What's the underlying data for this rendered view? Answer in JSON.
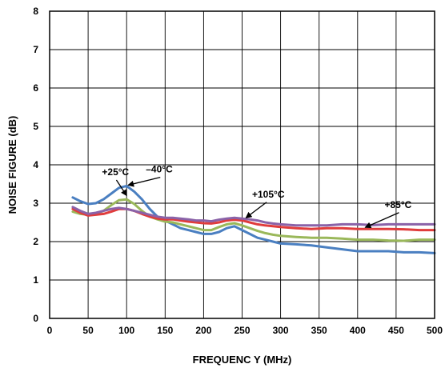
{
  "chart_data": {
    "type": "line",
    "title": "",
    "xlabel": "FREQUENC Y (MHz)",
    "ylabel": "NOISE FIGURE (dB)",
    "xlim": [
      0,
      500
    ],
    "ylim": [
      0,
      8
    ],
    "xticks": [
      0,
      50,
      100,
      150,
      200,
      250,
      300,
      350,
      400,
      450,
      500
    ],
    "yticks": [
      0,
      1,
      2,
      3,
      4,
      5,
      6,
      7,
      8
    ],
    "grid": true,
    "legend": "none",
    "series": [
      {
        "name": "",
        "color": "#4a7fc1",
        "x": [
          30,
          40,
          50,
          60,
          70,
          80,
          90,
          100,
          110,
          120,
          130,
          140,
          150,
          160,
          170,
          180,
          190,
          200,
          210,
          220,
          230,
          240,
          250,
          260,
          270,
          280,
          290,
          300,
          320,
          340,
          360,
          380,
          400,
          420,
          440,
          460,
          480,
          500
        ],
        "y": [
          3.15,
          3.05,
          2.98,
          3.0,
          3.1,
          3.25,
          3.4,
          3.45,
          3.3,
          3.1,
          2.85,
          2.65,
          2.55,
          2.45,
          2.35,
          2.3,
          2.25,
          2.2,
          2.2,
          2.25,
          2.35,
          2.4,
          2.3,
          2.2,
          2.1,
          2.05,
          2.0,
          1.95,
          1.93,
          1.9,
          1.85,
          1.8,
          1.75,
          1.75,
          1.75,
          1.72,
          1.72,
          1.7
        ]
      },
      {
        "name": "",
        "color": "#9ab85a",
        "x": [
          30,
          40,
          50,
          60,
          70,
          80,
          90,
          100,
          110,
          120,
          130,
          140,
          150,
          160,
          170,
          180,
          190,
          200,
          210,
          220,
          230,
          240,
          250,
          260,
          270,
          280,
          290,
          300,
          320,
          340,
          360,
          380,
          400,
          420,
          440,
          460,
          480,
          500
        ],
        "y": [
          2.78,
          2.72,
          2.7,
          2.72,
          2.8,
          2.95,
          3.08,
          3.1,
          2.98,
          2.8,
          2.65,
          2.58,
          2.52,
          2.5,
          2.45,
          2.4,
          2.35,
          2.3,
          2.3,
          2.38,
          2.45,
          2.48,
          2.42,
          2.35,
          2.28,
          2.22,
          2.18,
          2.15,
          2.12,
          2.1,
          2.1,
          2.08,
          2.05,
          2.05,
          2.03,
          2.02,
          2.05,
          2.05
        ]
      },
      {
        "name": "",
        "color": "#e03c3c",
        "x": [
          30,
          40,
          50,
          60,
          70,
          80,
          90,
          100,
          110,
          120,
          130,
          140,
          150,
          160,
          170,
          180,
          190,
          200,
          210,
          220,
          230,
          240,
          250,
          260,
          270,
          280,
          290,
          300,
          320,
          340,
          360,
          380,
          400,
          420,
          440,
          460,
          480,
          500
        ],
        "y": [
          2.85,
          2.75,
          2.68,
          2.7,
          2.72,
          2.78,
          2.85,
          2.85,
          2.8,
          2.72,
          2.65,
          2.6,
          2.58,
          2.58,
          2.55,
          2.52,
          2.5,
          2.48,
          2.47,
          2.5,
          2.55,
          2.57,
          2.55,
          2.5,
          2.45,
          2.42,
          2.4,
          2.38,
          2.35,
          2.33,
          2.35,
          2.35,
          2.33,
          2.33,
          2.33,
          2.32,
          2.3,
          2.3
        ]
      },
      {
        "name": "",
        "color": "#8a62a8",
        "x": [
          30,
          40,
          50,
          60,
          70,
          80,
          90,
          100,
          110,
          120,
          130,
          140,
          150,
          160,
          170,
          180,
          190,
          200,
          210,
          220,
          230,
          240,
          250,
          260,
          270,
          280,
          290,
          300,
          320,
          340,
          360,
          380,
          400,
          420,
          440,
          460,
          480,
          500
        ],
        "y": [
          2.9,
          2.8,
          2.72,
          2.75,
          2.8,
          2.85,
          2.88,
          2.85,
          2.8,
          2.75,
          2.7,
          2.65,
          2.62,
          2.62,
          2.6,
          2.58,
          2.55,
          2.55,
          2.53,
          2.57,
          2.6,
          2.62,
          2.6,
          2.58,
          2.55,
          2.5,
          2.47,
          2.45,
          2.42,
          2.42,
          2.42,
          2.45,
          2.45,
          2.43,
          2.45,
          2.45,
          2.45,
          2.45
        ]
      }
    ],
    "annotations": [
      {
        "text": "+25°C",
        "ax": 68,
        "ay": 3.73,
        "x": 100,
        "y": 3.2,
        "anchor": "start"
      },
      {
        "text": "–40°C",
        "ax": 125,
        "ay": 3.8,
        "x": 102,
        "y": 3.47,
        "anchor": "start"
      },
      {
        "text": "+105°C",
        "ax": 263,
        "ay": 3.15,
        "x": 255,
        "y": 2.62,
        "anchor": "start"
      },
      {
        "text": "+85°C",
        "ax": 435,
        "ay": 2.88,
        "x": 410,
        "y": 2.37,
        "anchor": "start"
      }
    ]
  }
}
